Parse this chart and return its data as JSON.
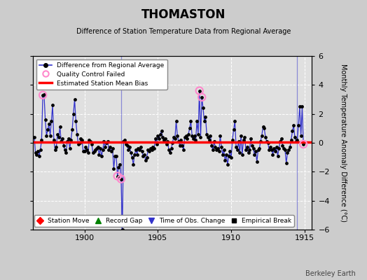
{
  "title": "THOMASTON",
  "subtitle": "Difference of Station Temperature Data from Regional Average",
  "ylabel": "Monthly Temperature Anomaly Difference (°C)",
  "xlabel_note": "Berkeley Earth",
  "xlim": [
    1896.5,
    1915.5
  ],
  "ylim": [
    -6,
    6
  ],
  "yticks": [
    -6,
    -4,
    -2,
    0,
    2,
    4,
    6
  ],
  "xticks": [
    1900,
    1905,
    1910,
    1915
  ],
  "mean_bias": 0.05,
  "background_color": "#cccccc",
  "plot_bg_color": "#e0e0e0",
  "grid_color": "#ffffff",
  "line_color": "#3333cc",
  "bias_color": "#ff0000",
  "qc_color": "#ff88cc",
  "marker_color": "#000000",
  "time_obs_change_years": [
    1902.5,
    1914.5
  ],
  "qc_failed_points": [
    [
      1897.167,
      3.3
    ],
    [
      1902.25,
      -2.3
    ],
    [
      1902.5,
      -2.5
    ],
    [
      1907.833,
      3.6
    ],
    [
      1908.0,
      3.15
    ],
    [
      1914.917,
      -0.1
    ]
  ],
  "data": [
    [
      1896.583,
      0.4
    ],
    [
      1896.667,
      -0.7
    ],
    [
      1896.75,
      -0.8
    ],
    [
      1896.833,
      -0.6
    ],
    [
      1896.917,
      -0.9
    ],
    [
      1897.0,
      -0.5
    ],
    [
      1897.083,
      0.2
    ],
    [
      1897.167,
      3.3
    ],
    [
      1897.25,
      3.35
    ],
    [
      1897.333,
      1.6
    ],
    [
      1897.417,
      0.5
    ],
    [
      1897.5,
      0.9
    ],
    [
      1897.583,
      1.3
    ],
    [
      1897.667,
      0.5
    ],
    [
      1897.75,
      1.5
    ],
    [
      1897.833,
      2.6
    ],
    [
      1897.917,
      0.2
    ],
    [
      1898.0,
      -0.5
    ],
    [
      1898.083,
      -0.3
    ],
    [
      1898.167,
      0.6
    ],
    [
      1898.25,
      0.4
    ],
    [
      1898.333,
      1.1
    ],
    [
      1898.417,
      0.1
    ],
    [
      1898.5,
      0.3
    ],
    [
      1898.583,
      -0.2
    ],
    [
      1898.667,
      -0.5
    ],
    [
      1898.75,
      -0.7
    ],
    [
      1898.833,
      0.1
    ],
    [
      1898.917,
      0.3
    ],
    [
      1899.0,
      -0.4
    ],
    [
      1899.083,
      0.2
    ],
    [
      1899.167,
      0.9
    ],
    [
      1899.25,
      2.0
    ],
    [
      1899.333,
      3.0
    ],
    [
      1899.417,
      1.5
    ],
    [
      1899.5,
      0.6
    ],
    [
      1899.583,
      -0.1
    ],
    [
      1899.667,
      0.0
    ],
    [
      1899.75,
      0.3
    ],
    [
      1899.833,
      0.2
    ],
    [
      1899.917,
      -0.6
    ],
    [
      1900.0,
      -0.6
    ],
    [
      1900.083,
      -0.3
    ],
    [
      1900.167,
      -0.5
    ],
    [
      1900.25,
      -0.7
    ],
    [
      1900.333,
      0.2
    ],
    [
      1900.417,
      0.1
    ],
    [
      1900.5,
      -0.1
    ],
    [
      1900.583,
      -0.7
    ],
    [
      1900.667,
      -0.6
    ],
    [
      1900.75,
      -0.5
    ],
    [
      1900.833,
      -0.4
    ],
    [
      1900.917,
      -0.3
    ],
    [
      1901.0,
      -0.8
    ],
    [
      1901.083,
      -0.4
    ],
    [
      1901.167,
      -0.9
    ],
    [
      1901.25,
      -0.5
    ],
    [
      1901.333,
      0.1
    ],
    [
      1901.417,
      -0.3
    ],
    [
      1901.5,
      0.0
    ],
    [
      1901.583,
      0.1
    ],
    [
      1901.667,
      -0.5
    ],
    [
      1901.75,
      -0.3
    ],
    [
      1901.833,
      -0.6
    ],
    [
      1901.917,
      -0.4
    ],
    [
      1902.0,
      -1.8
    ],
    [
      1902.083,
      -0.9
    ],
    [
      1902.167,
      -0.9
    ],
    [
      1902.25,
      -2.3
    ],
    [
      1902.333,
      -1.7
    ],
    [
      1902.417,
      -1.5
    ],
    [
      1902.5,
      -2.5
    ],
    [
      1902.583,
      -6.0
    ],
    [
      1902.667,
      0.1
    ],
    [
      1902.75,
      0.2
    ],
    [
      1902.833,
      -0.1
    ],
    [
      1902.917,
      -0.2
    ],
    [
      1903.0,
      -0.5
    ],
    [
      1903.083,
      -0.3
    ],
    [
      1903.167,
      -0.7
    ],
    [
      1903.25,
      -1.0
    ],
    [
      1903.333,
      -1.5
    ],
    [
      1903.417,
      -0.8
    ],
    [
      1903.5,
      -0.5
    ],
    [
      1903.583,
      -0.8
    ],
    [
      1903.667,
      -0.4
    ],
    [
      1903.75,
      -0.5
    ],
    [
      1903.833,
      -0.3
    ],
    [
      1903.917,
      -0.6
    ],
    [
      1904.0,
      -0.9
    ],
    [
      1904.083,
      -0.8
    ],
    [
      1904.167,
      -1.2
    ],
    [
      1904.25,
      -1.0
    ],
    [
      1904.333,
      -0.5
    ],
    [
      1904.417,
      -0.6
    ],
    [
      1904.5,
      -0.4
    ],
    [
      1904.583,
      -0.5
    ],
    [
      1904.667,
      -0.3
    ],
    [
      1904.75,
      -0.4
    ],
    [
      1904.833,
      0.3
    ],
    [
      1904.917,
      -0.1
    ],
    [
      1905.0,
      0.5
    ],
    [
      1905.083,
      0.3
    ],
    [
      1905.167,
      0.6
    ],
    [
      1905.25,
      0.8
    ],
    [
      1905.333,
      0.4
    ],
    [
      1905.417,
      0.2
    ],
    [
      1905.5,
      0.3
    ],
    [
      1905.583,
      -0.1
    ],
    [
      1905.667,
      0.1
    ],
    [
      1905.75,
      -0.5
    ],
    [
      1905.833,
      -0.7
    ],
    [
      1905.917,
      -0.4
    ],
    [
      1906.0,
      0.0
    ],
    [
      1906.083,
      0.4
    ],
    [
      1906.167,
      0.3
    ],
    [
      1906.25,
      1.5
    ],
    [
      1906.333,
      0.5
    ],
    [
      1906.417,
      0.1
    ],
    [
      1906.5,
      -0.2
    ],
    [
      1906.583,
      0.2
    ],
    [
      1906.667,
      -0.2
    ],
    [
      1906.75,
      -0.5
    ],
    [
      1906.833,
      0.4
    ],
    [
      1906.917,
      0.5
    ],
    [
      1907.0,
      0.3
    ],
    [
      1907.083,
      0.6
    ],
    [
      1907.167,
      1.0
    ],
    [
      1907.25,
      1.5
    ],
    [
      1907.333,
      0.5
    ],
    [
      1907.417,
      0.3
    ],
    [
      1907.5,
      0.5
    ],
    [
      1907.583,
      0.2
    ],
    [
      1907.667,
      1.5
    ],
    [
      1907.75,
      0.6
    ],
    [
      1907.833,
      3.6
    ],
    [
      1907.917,
      0.4
    ],
    [
      1908.0,
      3.15
    ],
    [
      1908.083,
      2.4
    ],
    [
      1908.167,
      1.5
    ],
    [
      1908.25,
      1.8
    ],
    [
      1908.333,
      0.6
    ],
    [
      1908.417,
      0.4
    ],
    [
      1908.5,
      0.2
    ],
    [
      1908.583,
      0.5
    ],
    [
      1908.667,
      -0.2
    ],
    [
      1908.75,
      -0.5
    ],
    [
      1908.833,
      0.1
    ],
    [
      1908.917,
      -0.3
    ],
    [
      1909.0,
      -0.5
    ],
    [
      1909.083,
      -0.4
    ],
    [
      1909.167,
      -0.6
    ],
    [
      1909.25,
      0.5
    ],
    [
      1909.333,
      -0.3
    ],
    [
      1909.417,
      -0.8
    ],
    [
      1909.5,
      -0.5
    ],
    [
      1909.583,
      -1.2
    ],
    [
      1909.667,
      -0.8
    ],
    [
      1909.75,
      -1.5
    ],
    [
      1909.833,
      -0.9
    ],
    [
      1909.917,
      -0.6
    ],
    [
      1910.0,
      -1.0
    ],
    [
      1910.083,
      0.2
    ],
    [
      1910.167,
      0.9
    ],
    [
      1910.25,
      1.5
    ],
    [
      1910.333,
      -0.3
    ],
    [
      1910.417,
      -0.5
    ],
    [
      1910.5,
      0.1
    ],
    [
      1910.583,
      -0.7
    ],
    [
      1910.667,
      0.5
    ],
    [
      1910.75,
      -0.8
    ],
    [
      1910.833,
      0.2
    ],
    [
      1910.917,
      0.4
    ],
    [
      1911.0,
      -0.5
    ],
    [
      1911.083,
      -0.3
    ],
    [
      1911.167,
      -0.7
    ],
    [
      1911.25,
      -0.5
    ],
    [
      1911.333,
      0.3
    ],
    [
      1911.417,
      -0.2
    ],
    [
      1911.5,
      -0.4
    ],
    [
      1911.583,
      -0.8
    ],
    [
      1911.667,
      -0.6
    ],
    [
      1911.75,
      -1.3
    ],
    [
      1911.833,
      -0.5
    ],
    [
      1911.917,
      -0.4
    ],
    [
      1912.0,
      0.1
    ],
    [
      1912.083,
      0.5
    ],
    [
      1912.167,
      1.1
    ],
    [
      1912.25,
      1.0
    ],
    [
      1912.333,
      0.4
    ],
    [
      1912.417,
      0.1
    ],
    [
      1912.5,
      0.0
    ],
    [
      1912.583,
      -0.5
    ],
    [
      1912.667,
      -0.3
    ],
    [
      1912.75,
      -0.5
    ],
    [
      1912.833,
      -0.8
    ],
    [
      1912.917,
      -0.4
    ],
    [
      1913.0,
      -0.6
    ],
    [
      1913.083,
      -0.3
    ],
    [
      1913.167,
      -0.9
    ],
    [
      1913.25,
      -0.4
    ],
    [
      1913.333,
      0.1
    ],
    [
      1913.417,
      0.3
    ],
    [
      1913.5,
      -0.2
    ],
    [
      1913.583,
      -0.4
    ],
    [
      1913.667,
      -0.5
    ],
    [
      1913.75,
      -1.4
    ],
    [
      1913.833,
      -0.7
    ],
    [
      1913.917,
      -0.5
    ],
    [
      1914.0,
      -0.3
    ],
    [
      1914.083,
      0.2
    ],
    [
      1914.167,
      0.8
    ],
    [
      1914.25,
      1.2
    ],
    [
      1914.333,
      0.4
    ],
    [
      1914.417,
      0.1
    ],
    [
      1914.5,
      0.2
    ],
    [
      1914.583,
      1.2
    ],
    [
      1914.667,
      2.5
    ],
    [
      1914.75,
      0.5
    ],
    [
      1914.833,
      2.5
    ],
    [
      1914.917,
      -0.1
    ]
  ]
}
